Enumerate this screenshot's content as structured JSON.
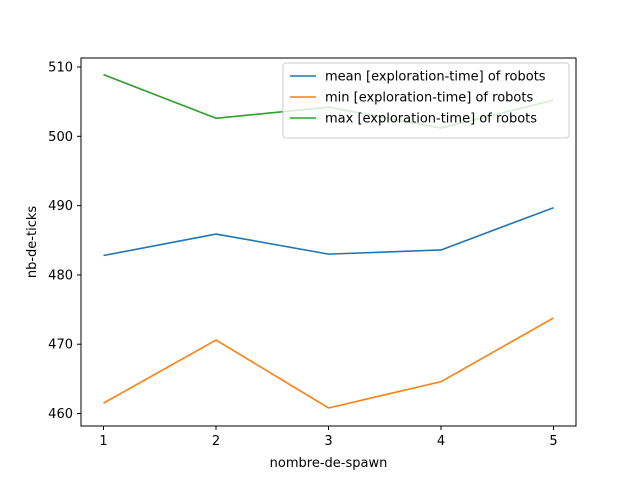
{
  "chart_data": {
    "type": "line",
    "title": "",
    "xlabel": "nombre-de-spawn",
    "ylabel": "nb-de-ticks",
    "x": [
      1,
      2,
      3,
      4,
      5
    ],
    "xlim": [
      0.8,
      5.2
    ],
    "ylim": [
      458.2,
      511.3
    ],
    "xticks": [
      1,
      2,
      3,
      4,
      5
    ],
    "yticks": [
      460,
      470,
      480,
      490,
      500,
      510
    ],
    "grid": false,
    "legend_position": "top-right",
    "series": [
      {
        "name": "mean [exploration-time] of robots",
        "color": "#1f77b4",
        "values": [
          482.8,
          485.9,
          483.0,
          483.6,
          489.7
        ]
      },
      {
        "name": "min [exploration-time] of robots",
        "color": "#ff7f0e",
        "values": [
          461.5,
          470.6,
          460.8,
          464.6,
          473.8
        ]
      },
      {
        "name": "max [exploration-time] of robots",
        "color": "#2ca02c",
        "values": [
          508.9,
          502.6,
          504.2,
          501.2,
          505.2
        ]
      }
    ]
  }
}
